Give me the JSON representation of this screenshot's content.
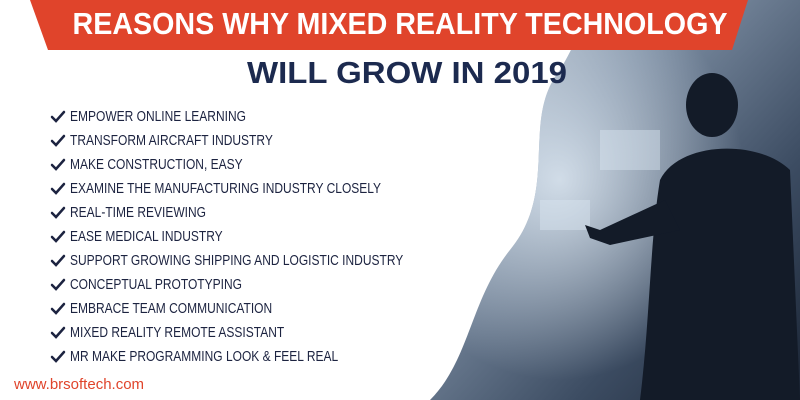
{
  "header": {
    "title": "REASONS WHY MIXED REALITY TECHNOLOGY",
    "subtitle": "WILL GROW IN 2019"
  },
  "list": {
    "items": [
      "EMPOWER ONLINE LEARNING",
      "TRANSFORM AIRCRAFT INDUSTRY",
      "MAKE CONSTRUCTION, EASY",
      "EXAMINE THE MANUFACTURING INDUSTRY CLOSELY",
      "REAL-TIME REVIEWING",
      "EASE MEDICAL INDUSTRY",
      "SUPPORT GROWING SHIPPING AND LOGISTIC INDUSTRY",
      "CONCEPTUAL PROTOTYPING",
      "EMBRACE TEAM COMMUNICATION",
      "MIXED REALITY REMOTE ASSISTANT",
      "MR MAKE PROGRAMMING LOOK & FEEL REAL"
    ]
  },
  "footer": {
    "website": "www.brsoftech.com"
  }
}
